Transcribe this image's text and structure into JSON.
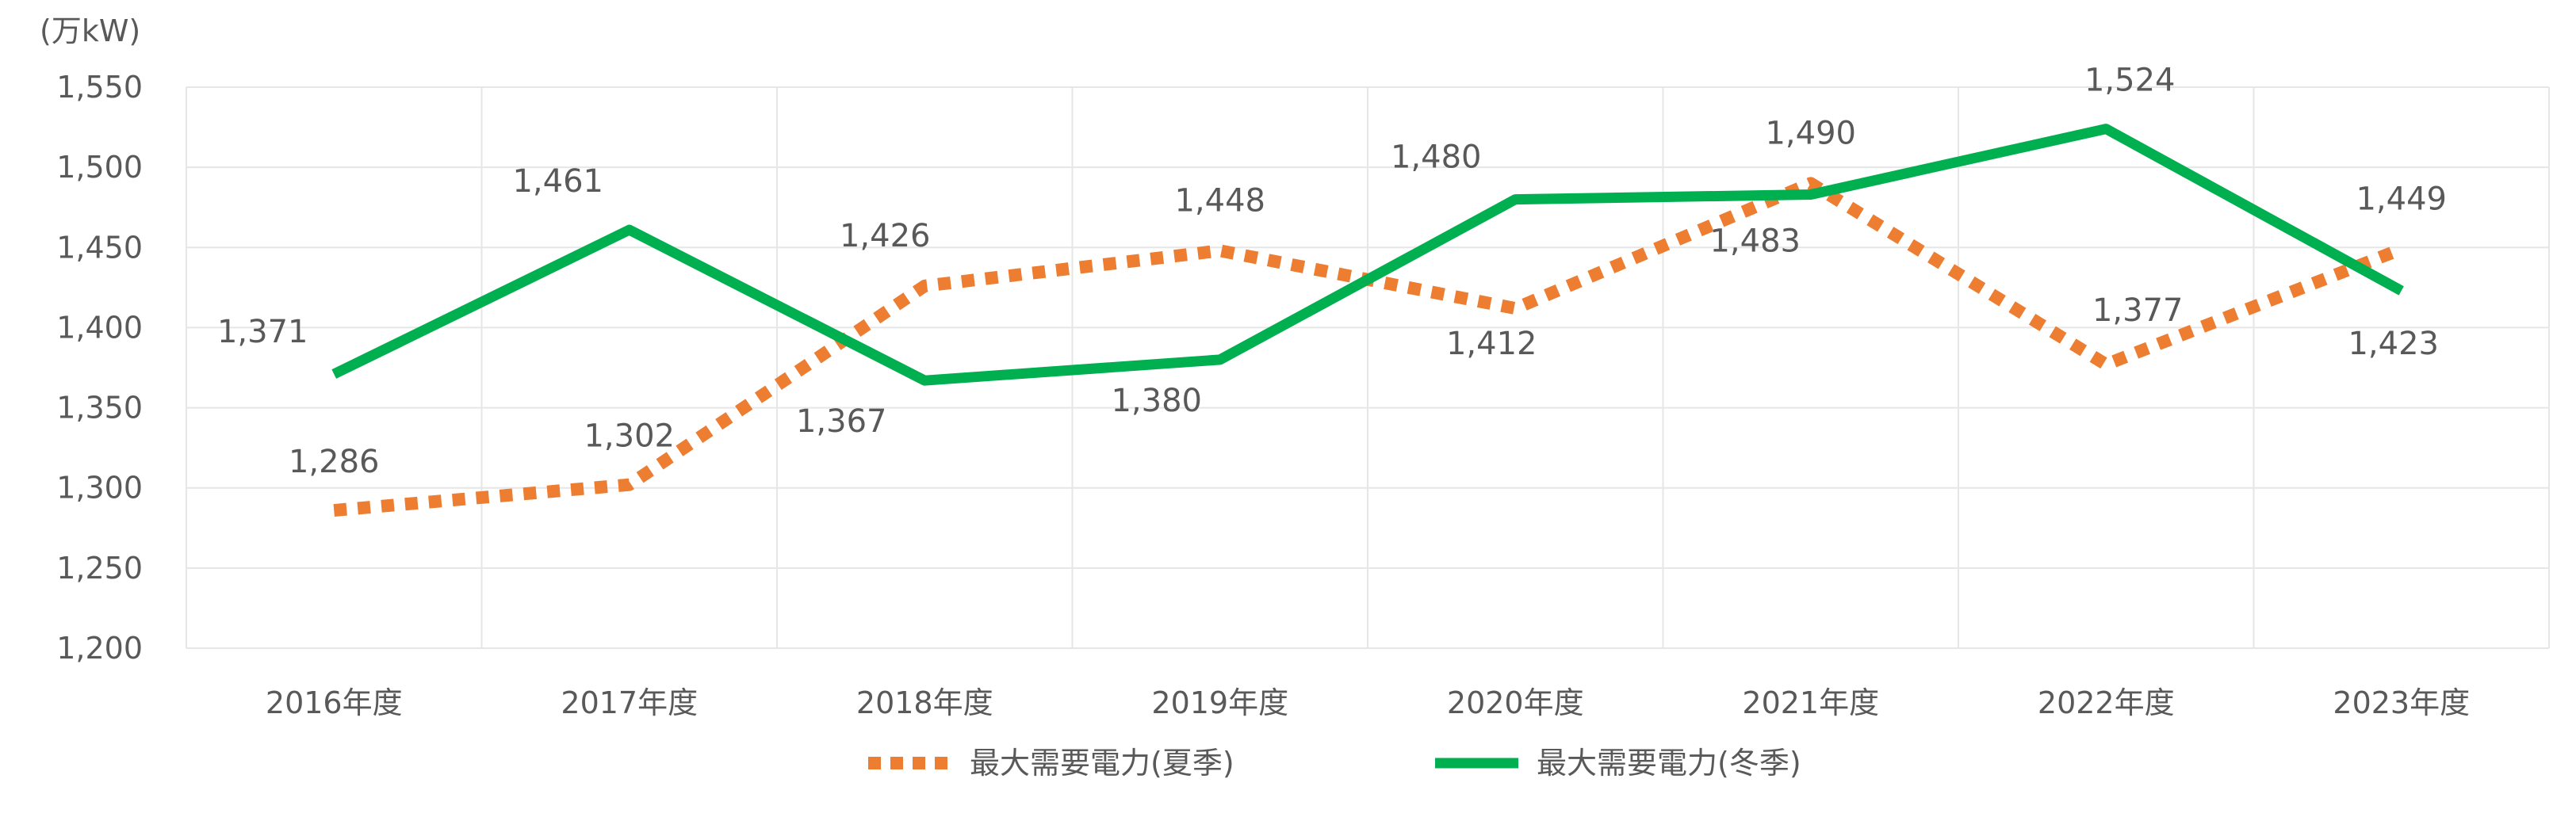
{
  "chart_data": {
    "type": "line",
    "unit_label": "(万kW)",
    "categories": [
      "2016年度",
      "2017年度",
      "2018年度",
      "2019年度",
      "2020年度",
      "2021年度",
      "2022年度",
      "2023年度"
    ],
    "series": [
      {
        "name": "最大需要電力(夏季)",
        "values": [
          1286,
          1302,
          1426,
          1448,
          1412,
          1490,
          1377,
          1449
        ],
        "labels": [
          "1,286",
          "1,302",
          "1,426",
          "1,448",
          "1,412",
          "1,490",
          "1,377",
          "1,449"
        ],
        "color": "#ED7D31",
        "style": "dotted"
      },
      {
        "name": "最大需要電力(冬季)",
        "values": [
          1371,
          1461,
          1367,
          1380,
          1480,
          1483,
          1524,
          1423
        ],
        "labels": [
          "1,371",
          "1,461",
          "1,367",
          "1,380",
          "1,480",
          "1,483",
          "1,524",
          "1,423"
        ],
        "color": "#00B050",
        "style": "solid"
      }
    ],
    "ylim": [
      1200,
      1550
    ],
    "y_ticks": [
      1200,
      1250,
      1300,
      1350,
      1400,
      1450,
      1500,
      1550
    ],
    "y_tick_labels": [
      "1,200",
      "1,250",
      "1,300",
      "1,350",
      "1,400",
      "1,450",
      "1,500",
      "1,550"
    ],
    "grid": true,
    "legend_position": "bottom"
  }
}
